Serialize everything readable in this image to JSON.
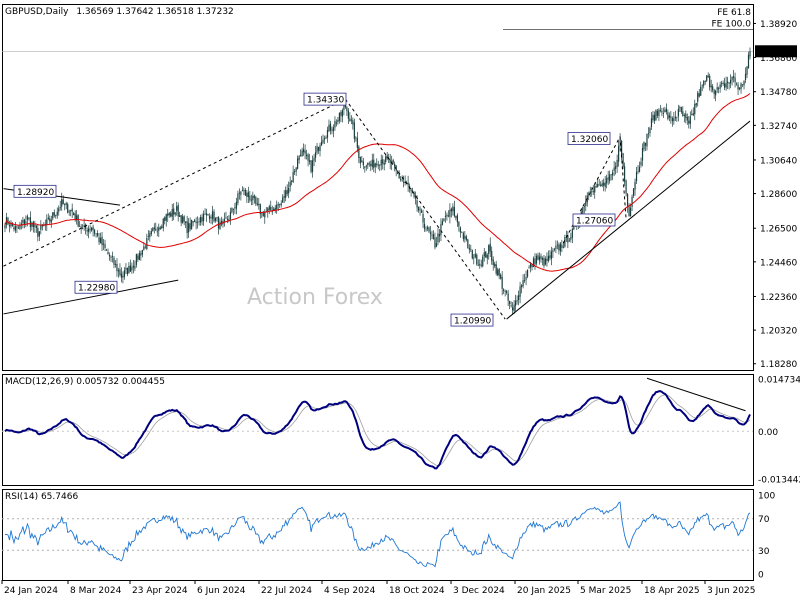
{
  "chart_data": [
    {
      "type": "candlestick",
      "symbol": "GBPUSD,Daily",
      "ohlc_header": "1.36569 1.37642 1.36518 1.37232",
      "watermark": "Action Forex",
      "ylim": [
        1.179,
        1.401
      ],
      "yticks": [
        "1.38920",
        "1.37232",
        "1.36860",
        "1.34780",
        "1.32740",
        "1.30640",
        "1.28600",
        "1.26500",
        "1.24460",
        "1.22360",
        "1.20320",
        "1.18280"
      ],
      "last_price": "1.37232",
      "xticks": [
        "24 Jan 2024",
        "8 Mar 2024",
        "23 Apr 2024",
        "6 Jun 2024",
        "22 Jul 2024",
        "4 Sep 2024",
        "18 Oct 2024",
        "3 Dec 2024",
        "20 Jan 2025",
        "5 Mar 2025",
        "18 Apr 2025",
        "3 Jun 2025"
      ],
      "annotations": [
        {
          "label": "1.28920",
          "price": 1.2892
        },
        {
          "label": "1.22980",
          "price": 1.2298
        },
        {
          "label": "1.34330",
          "price": 1.3433
        },
        {
          "label": "1.20990",
          "price": 1.2099
        },
        {
          "label": "1.32060",
          "price": 1.3206
        },
        {
          "label": "1.27060",
          "price": 1.2706
        }
      ],
      "fibo_labels": [
        "FE 61.8",
        "FE 100.0"
      ],
      "fe100_level": 1.3856,
      "close_anchors": [
        [
          0,
          1.27
        ],
        [
          8,
          1.264
        ],
        [
          15,
          1.271
        ],
        [
          22,
          1.262
        ],
        [
          30,
          1.27
        ],
        [
          38,
          1.28
        ],
        [
          45,
          1.275
        ],
        [
          52,
          1.264
        ],
        [
          58,
          1.266
        ],
        [
          65,
          1.255
        ],
        [
          72,
          1.245
        ],
        [
          78,
          1.236
        ],
        [
          85,
          1.242
        ],
        [
          92,
          1.252
        ],
        [
          100,
          1.264
        ],
        [
          108,
          1.272
        ],
        [
          115,
          1.276
        ],
        [
          122,
          1.265
        ],
        [
          130,
          1.271
        ],
        [
          138,
          1.274
        ],
        [
          145,
          1.265
        ],
        [
          152,
          1.275
        ],
        [
          158,
          1.288
        ],
        [
          165,
          1.283
        ],
        [
          172,
          1.274
        ],
        [
          178,
          1.276
        ],
        [
          185,
          1.28
        ],
        [
          192,
          1.295
        ],
        [
          198,
          1.312
        ],
        [
          205,
          1.302
        ],
        [
          212,
          1.32
        ],
        [
          218,
          1.326
        ],
        [
          224,
          1.332
        ],
        [
          228,
          1.339
        ],
        [
          232,
          1.329
        ],
        [
          238,
          1.306
        ],
        [
          245,
          1.303
        ],
        [
          252,
          1.307
        ],
        [
          258,
          1.305
        ],
        [
          264,
          1.296
        ],
        [
          270,
          1.29
        ],
        [
          276,
          1.278
        ],
        [
          282,
          1.265
        ],
        [
          288,
          1.255
        ],
        [
          294,
          1.27
        ],
        [
          300,
          1.276
        ],
        [
          306,
          1.262
        ],
        [
          312,
          1.25
        ],
        [
          318,
          1.244
        ],
        [
          324,
          1.252
        ],
        [
          330,
          1.238
        ],
        [
          336,
          1.223
        ],
        [
          340,
          1.214
        ],
        [
          344,
          1.227
        ],
        [
          350,
          1.239
        ],
        [
          356,
          1.247
        ],
        [
          362,
          1.244
        ],
        [
          368,
          1.251
        ],
        [
          374,
          1.256
        ],
        [
          380,
          1.262
        ],
        [
          386,
          1.275
        ],
        [
          392,
          1.29
        ],
        [
          398,
          1.29
        ],
        [
          404,
          1.293
        ],
        [
          408,
          1.3
        ],
        [
          412,
          1.318
        ],
        [
          416,
          1.286
        ],
        [
          418,
          1.275
        ],
        [
          422,
          1.295
        ],
        [
          428,
          1.315
        ],
        [
          434,
          1.332
        ],
        [
          440,
          1.338
        ],
        [
          446,
          1.33
        ],
        [
          452,
          1.336
        ],
        [
          458,
          1.327
        ],
        [
          464,
          1.345
        ],
        [
          470,
          1.356
        ],
        [
          476,
          1.348
        ],
        [
          482,
          1.352
        ],
        [
          488,
          1.356
        ],
        [
          492,
          1.349
        ],
        [
          496,
          1.358
        ],
        [
          499,
          1.3723
        ]
      ],
      "moving_average": {
        "type": "SMA",
        "period": 55,
        "color": "#e00000"
      },
      "trendlines": "black",
      "grid": false
    },
    {
      "type": "line",
      "indicator": "MACD",
      "title": "MACD(12,26,9) 0.005732 0.004455",
      "yticks": [
        "0.014734",
        "0.00",
        "-0.013442"
      ],
      "ylim": [
        -0.0152,
        0.0162
      ],
      "macd_color": "#00007f",
      "signal_color": "#a0a0a0",
      "zero_line": true
    },
    {
      "type": "line",
      "indicator": "RSI",
      "title": "RSI(14) 65.7466",
      "yticks": [
        "100",
        "70",
        "30",
        "0"
      ],
      "ylim": [
        0,
        100
      ],
      "levels": [
        70,
        30
      ],
      "line_color": "#1f77d4"
    }
  ]
}
